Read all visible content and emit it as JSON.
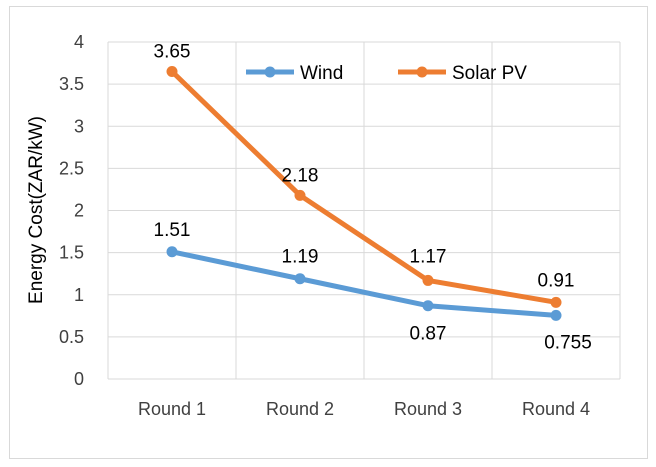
{
  "chart_data": {
    "type": "line",
    "categories": [
      "Round 1",
      "Round 2",
      "Round 3",
      "Round 4"
    ],
    "series": [
      {
        "name": "Wind",
        "values": [
          1.51,
          1.19,
          0.87,
          0.755
        ],
        "labels": [
          "1.51",
          "1.19",
          "0.87",
          "0.755"
        ],
        "color": "#5B9BD5"
      },
      {
        "name": "Solar PV",
        "values": [
          3.65,
          2.18,
          1.17,
          0.91
        ],
        "labels": [
          "3.65",
          "2.18",
          "1.17",
          "0.91"
        ],
        "color": "#ED7D31"
      }
    ],
    "title": "",
    "xlabel": "",
    "ylabel": "Energy Cost(ZAR/kW)",
    "ylim": [
      0,
      4
    ],
    "yticks": [
      "0",
      "0.5",
      "1",
      "1.5",
      "2",
      "2.5",
      "3",
      "3.5",
      "4"
    ],
    "grid": true,
    "legend_position": "top"
  }
}
